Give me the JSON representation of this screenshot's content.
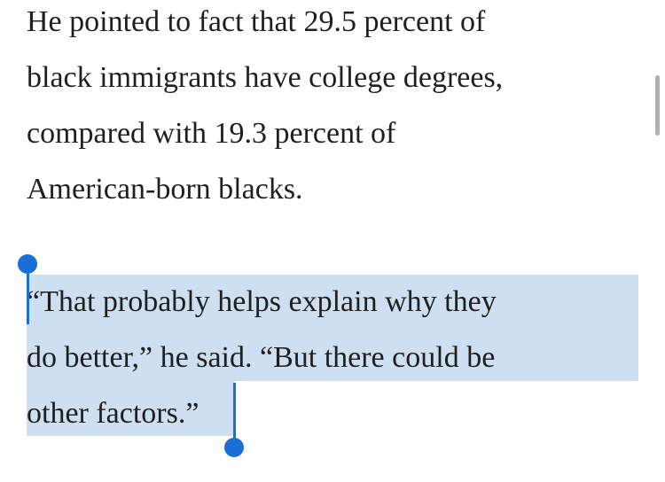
{
  "paragraphs": [
    {
      "lines": [
        "He pointed to fact that 29.5 percent of",
        "black immigrants have college degrees,",
        "compared with 19.3 percent of",
        "American-born blacks."
      ]
    },
    {
      "lines": [
        "“That probably helps explain why they",
        "do better,” he said. “But there could be",
        "other factors.”"
      ]
    }
  ]
}
